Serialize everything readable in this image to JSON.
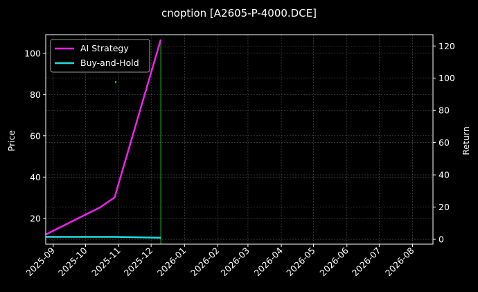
{
  "chart_data": {
    "type": "line",
    "title": "cnoption [A2605-P-4000.DCE]",
    "xlabel": "",
    "ylabel_left": "Price",
    "ylabel_right": "Return",
    "x_ticks": [
      "2025-09",
      "2025-10",
      "2025-11",
      "2025-12",
      "2026-01",
      "2026-02",
      "2026-03",
      "2026-04",
      "2026-05",
      "2026-06",
      "2026-07",
      "2026-08"
    ],
    "xlim": [
      "2025-08-25",
      "2026-08-20"
    ],
    "ylim_left": [
      7.5,
      109
    ],
    "yticks_left": [
      20,
      40,
      60,
      80,
      100
    ],
    "ylim_right": [
      -3,
      127
    ],
    "yticks_right": [
      0,
      20,
      40,
      60,
      80,
      100,
      120
    ],
    "grid": true,
    "legend_position": "top-left",
    "colors": {
      "background": "#000000",
      "ai_strategy": "#ee22ee",
      "buy_and_hold": "#22dddd",
      "marker": "#22cc22"
    },
    "series": [
      {
        "name": "AI Strategy",
        "axis": "right",
        "points": [
          [
            "2025-08-25",
            3.0
          ],
          [
            "2025-10-15",
            20.0
          ],
          [
            "2025-10-28",
            26.0
          ],
          [
            "2025-12-10",
            124.0
          ]
        ]
      },
      {
        "name": "Buy-and-Hold",
        "axis": "right",
        "points": [
          [
            "2025-08-25",
            1.5
          ],
          [
            "2025-10-28",
            1.5
          ],
          [
            "2025-12-10",
            1.0
          ]
        ]
      }
    ],
    "markers": {
      "vline_date": "2025-12-10",
      "vline_range_left": [
        7.5,
        105
      ],
      "dot": {
        "date": "2025-10-29",
        "value": 86
      }
    }
  }
}
